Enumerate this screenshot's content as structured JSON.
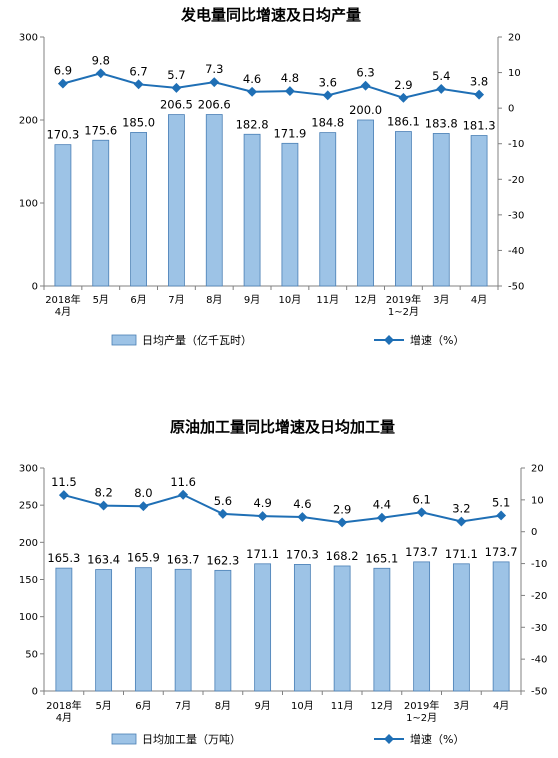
{
  "chart_data": [
    {
      "type": "bar",
      "title": "发电量同比增速及日均产量",
      "categories": [
        [
          "2018年",
          "4月"
        ],
        [
          "5月"
        ],
        [
          "6月"
        ],
        [
          "7月"
        ],
        [
          "8月"
        ],
        [
          "9月"
        ],
        [
          "10月"
        ],
        [
          "11月"
        ],
        [
          "12月"
        ],
        [
          "2019年",
          "1~2月"
        ],
        [
          "3月"
        ],
        [
          "4月"
        ]
      ],
      "series": [
        {
          "name": "日均产量（亿千瓦时）",
          "type": "bar",
          "axis": "left",
          "color": "#9dc3e6",
          "values": [
            170.3,
            175.6,
            185.0,
            206.5,
            206.6,
            182.8,
            171.9,
            184.8,
            200.0,
            186.1,
            183.8,
            181.3
          ],
          "labels": [
            "170.3",
            "175.6",
            "185.0",
            "206.5",
            "206.6",
            "182.8",
            "171.9",
            "184.8",
            "200.0",
            "186.1",
            "183.8",
            "181.3"
          ]
        },
        {
          "name": "增速（%）",
          "type": "line",
          "axis": "right",
          "color": "#1f6fb5",
          "values": [
            6.9,
            9.8,
            6.7,
            5.7,
            7.3,
            4.6,
            4.8,
            3.6,
            6.3,
            2.9,
            5.4,
            3.8
          ],
          "labels": [
            "6.9",
            "9.8",
            "6.7",
            "5.7",
            "7.3",
            "4.6",
            "4.8",
            "3.6",
            "6.3",
            "2.9",
            "5.4",
            "3.8"
          ]
        }
      ],
      "ylim_left": [
        0,
        300
      ],
      "yticks_left": [
        0,
        100,
        200,
        300
      ],
      "ylim_right": [
        -50,
        20
      ],
      "yticks_right": [
        20,
        10,
        0,
        -10,
        -20,
        -30,
        -40,
        -50
      ],
      "grid": false,
      "legend_position": "bottom"
    },
    {
      "type": "bar",
      "title": "原油加工量同比增速及日均加工量",
      "categories": [
        [
          "2018年",
          "4月"
        ],
        [
          "5月"
        ],
        [
          "6月"
        ],
        [
          "7月"
        ],
        [
          "8月"
        ],
        [
          "9月"
        ],
        [
          "10月"
        ],
        [
          "11月"
        ],
        [
          "12月"
        ],
        [
          "2019年",
          "1~2月"
        ],
        [
          "3月"
        ],
        [
          "4月"
        ]
      ],
      "series": [
        {
          "name": "日均加工量（万吨）",
          "type": "bar",
          "axis": "left",
          "color": "#9dc3e6",
          "values": [
            165.3,
            163.4,
            165.9,
            163.7,
            162.3,
            171.1,
            170.3,
            168.2,
            165.1,
            173.7,
            171.1,
            173.7
          ],
          "labels": [
            "165.3",
            "163.4",
            "165.9",
            "163.7",
            "162.3",
            "171.1",
            "170.3",
            "168.2",
            "165.1",
            "173.7",
            "171.1",
            "173.7"
          ]
        },
        {
          "name": "增速（%）",
          "type": "line",
          "axis": "right",
          "color": "#1f6fb5",
          "values": [
            11.5,
            8.2,
            8.0,
            11.6,
            5.6,
            4.9,
            4.6,
            2.9,
            4.4,
            6.1,
            3.2,
            5.1
          ],
          "labels": [
            "11.5",
            "8.2",
            "8.0",
            "11.6",
            "5.6",
            "4.9",
            "4.6",
            "2.9",
            "4.4",
            "6.1",
            "3.2",
            "5.1"
          ]
        }
      ],
      "ylim_left": [
        0,
        300
      ],
      "yticks_left": [
        0,
        50,
        100,
        150,
        200,
        250,
        300
      ],
      "ylim_right": [
        -50,
        20
      ],
      "yticks_right": [
        20,
        10,
        0,
        -10,
        -20,
        -30,
        -40,
        -50
      ],
      "grid": false,
      "legend_position": "bottom"
    }
  ]
}
